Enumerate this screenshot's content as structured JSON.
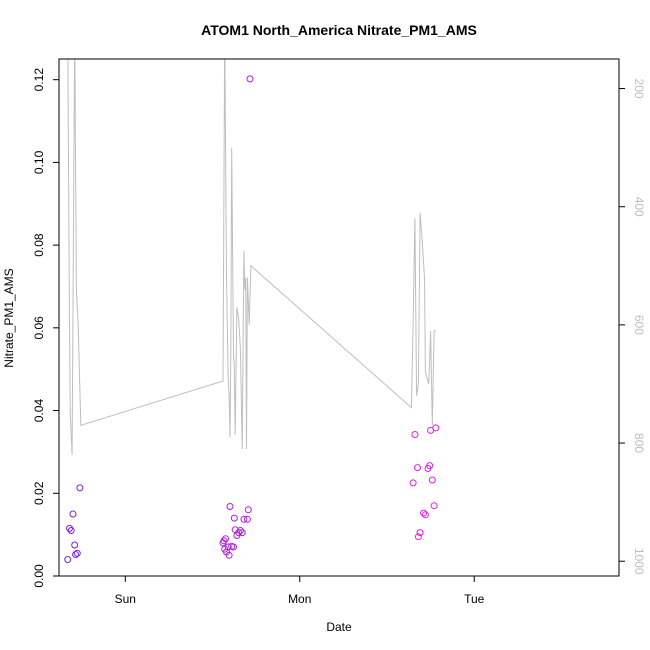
{
  "chart_data": {
    "type": "scatter",
    "title": "ATOM1 North_America Nitrate_PM1_AMS",
    "xlabel": "Date",
    "ylabel": "Nitrate_PM1_AMS",
    "x_ticks": [
      "Sun",
      "Mon",
      "Tue"
    ],
    "x_range_days": [
      -0.38,
      2.83
    ],
    "ylim": [
      0,
      0.125
    ],
    "y_ticks": [
      0.0,
      0.02,
      0.04,
      0.06,
      0.08,
      0.1,
      0.12
    ],
    "y_tick_labels": [
      "0.00",
      "0.02",
      "0.04",
      "0.06",
      "0.08",
      "0.10",
      "0.12"
    ],
    "y2_range": [
      1025,
      150
    ],
    "y2_ticks": [
      200,
      400,
      600,
      800,
      1000
    ],
    "y2_tick_labels": [
      "200",
      "400",
      "600",
      "800",
      "1000"
    ],
    "line_color": "#bebebe",
    "point_colors": [
      "#7a1fe0",
      "#b31ce0",
      "#e61ce6",
      "#f01adb"
    ],
    "points": [
      {
        "x": -0.33,
        "y": 0.004
      },
      {
        "x": -0.32,
        "y": 0.0115
      },
      {
        "x": -0.31,
        "y": 0.011
      },
      {
        "x": -0.3,
        "y": 0.015
      },
      {
        "x": -0.29,
        "y": 0.0075
      },
      {
        "x": -0.285,
        "y": 0.0052
      },
      {
        "x": -0.275,
        "y": 0.0055
      },
      {
        "x": -0.26,
        "y": 0.0213
      },
      {
        "x": 0.56,
        "y": 0.008
      },
      {
        "x": 0.565,
        "y": 0.0085
      },
      {
        "x": 0.57,
        "y": 0.0065
      },
      {
        "x": 0.575,
        "y": 0.009
      },
      {
        "x": 0.58,
        "y": 0.0058
      },
      {
        "x": 0.59,
        "y": 0.007
      },
      {
        "x": 0.595,
        "y": 0.005
      },
      {
        "x": 0.6,
        "y": 0.0168
      },
      {
        "x": 0.61,
        "y": 0.0072
      },
      {
        "x": 0.62,
        "y": 0.007
      },
      {
        "x": 0.625,
        "y": 0.014
      },
      {
        "x": 0.63,
        "y": 0.0112
      },
      {
        "x": 0.64,
        "y": 0.0098
      },
      {
        "x": 0.65,
        "y": 0.0105
      },
      {
        "x": 0.66,
        "y": 0.011
      },
      {
        "x": 0.67,
        "y": 0.0105
      },
      {
        "x": 0.68,
        "y": 0.0137
      },
      {
        "x": 0.7,
        "y": 0.0137
      },
      {
        "x": 0.705,
        "y": 0.016
      },
      {
        "x": 0.715,
        "y": 0.1202
      },
      {
        "x": 1.65,
        "y": 0.0225
      },
      {
        "x": 1.66,
        "y": 0.0342
      },
      {
        "x": 1.675,
        "y": 0.0262
      },
      {
        "x": 1.68,
        "y": 0.0095
      },
      {
        "x": 1.69,
        "y": 0.0105
      },
      {
        "x": 1.71,
        "y": 0.0152
      },
      {
        "x": 1.72,
        "y": 0.0148
      },
      {
        "x": 1.735,
        "y": 0.026
      },
      {
        "x": 1.745,
        "y": 0.0267
      },
      {
        "x": 1.75,
        "y": 0.0352
      },
      {
        "x": 1.76,
        "y": 0.0232
      },
      {
        "x": 1.77,
        "y": 0.017
      },
      {
        "x": 1.78,
        "y": 0.0358
      }
    ],
    "altitude_line": [
      [
        -0.33,
        100
      ],
      [
        -0.32,
        600
      ],
      [
        -0.315,
        750
      ],
      [
        -0.305,
        820
      ],
      [
        -0.29,
        100
      ],
      [
        -0.28,
        540
      ],
      [
        -0.27,
        600
      ],
      [
        -0.255,
        770
      ],
      [
        0.56,
        695
      ],
      [
        0.57,
        100
      ],
      [
        0.58,
        520
      ],
      [
        0.59,
        690
      ],
      [
        0.595,
        720
      ],
      [
        0.6,
        790
      ],
      [
        0.605,
        650
      ],
      [
        0.61,
        300
      ],
      [
        0.62,
        650
      ],
      [
        0.625,
        670
      ],
      [
        0.63,
        785
      ],
      [
        0.64,
        570
      ],
      [
        0.65,
        590
      ],
      [
        0.66,
        640
      ],
      [
        0.67,
        810
      ],
      [
        0.68,
        475
      ],
      [
        0.685,
        540
      ],
      [
        0.69,
        520
      ],
      [
        0.695,
        810
      ],
      [
        0.7,
        520
      ],
      [
        0.71,
        600
      ],
      [
        0.72,
        500
      ],
      [
        1.64,
        740
      ],
      [
        1.65,
        600
      ],
      [
        1.66,
        420
      ],
      [
        1.67,
        720
      ],
      [
        1.68,
        700
      ],
      [
        1.69,
        410
      ],
      [
        1.7,
        450
      ],
      [
        1.715,
        520
      ],
      [
        1.72,
        680
      ],
      [
        1.74,
        700
      ],
      [
        1.75,
        610
      ],
      [
        1.76,
        770
      ],
      [
        1.77,
        610
      ],
      [
        1.78,
        610
      ]
    ]
  }
}
